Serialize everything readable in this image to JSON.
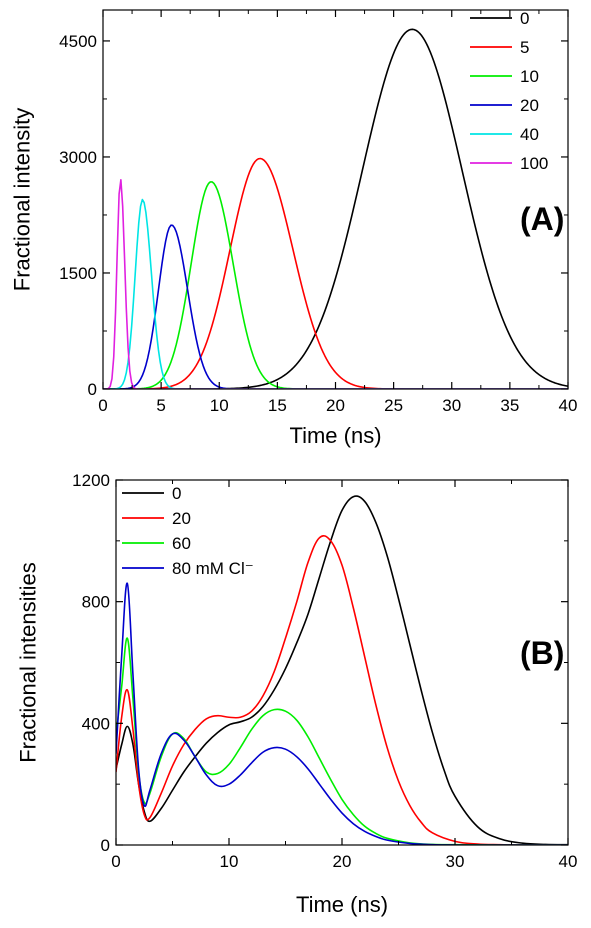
{
  "chart_data": [
    {
      "type": "line",
      "panel_label": "(A)",
      "xlabel": "Time (ns)",
      "ylabel": "Fractional intensity",
      "xlim": [
        0,
        40
      ],
      "ylim": [
        0,
        4900
      ],
      "xticks": [
        0,
        5,
        10,
        15,
        20,
        25,
        30,
        35,
        40
      ],
      "yticks": [
        0,
        1500,
        3000,
        4500
      ],
      "legend_position": "top-right",
      "grid": false,
      "series": [
        {
          "name": "0",
          "color": "#000000",
          "peak_x": 26.6,
          "peak_y": 4650,
          "width": 4.3,
          "skew": 0.0,
          "x": [
            16,
            18,
            20,
            22,
            24,
            26,
            26.6,
            28,
            30,
            32,
            34,
            36,
            38,
            40
          ],
          "y": [
            40,
            230,
            820,
            2050,
            3550,
            4600,
            4650,
            4400,
            3350,
            2000,
            900,
            300,
            75,
            10
          ]
        },
        {
          "name": "5",
          "color": "#ff0000",
          "peak_x": 13.5,
          "peak_y": 2980,
          "width": 2.7,
          "skew": 0.05,
          "x": [
            6,
            8,
            10,
            12,
            13.5,
            15,
            17,
            19,
            21,
            23,
            25
          ],
          "y": [
            60,
            400,
            1290,
            2550,
            2980,
            2650,
            1500,
            560,
            140,
            25,
            3
          ]
        },
        {
          "name": "10",
          "color": "#00ee00",
          "peak_x": 9.3,
          "peak_y": 2680,
          "width": 1.8,
          "skew": 0.05,
          "x": [
            3,
            5,
            7,
            8,
            9.3,
            10.5,
            12,
            14,
            16
          ],
          "y": [
            20,
            250,
            1250,
            2050,
            2680,
            2350,
            1280,
            280,
            25
          ]
        },
        {
          "name": "20",
          "color": "#0000cc",
          "peak_x": 5.9,
          "peak_y": 2120,
          "width": 1.25,
          "skew": 0.1,
          "x": [
            1.5,
            3,
            4.5,
            5.9,
            7,
            8.5,
            10,
            12
          ],
          "y": [
            20,
            320,
            1330,
            2120,
            1750,
            730,
            180,
            15
          ]
        },
        {
          "name": "40",
          "color": "#00e5e5",
          "peak_x": 3.4,
          "peak_y": 2450,
          "width": 0.7,
          "skew": 0.1,
          "x": [
            1,
            2,
            2.8,
            3.4,
            4,
            5,
            6
          ],
          "y": [
            30,
            450,
            1700,
            2450,
            1900,
            480,
            40
          ]
        },
        {
          "name": "100",
          "color": "#e020e0",
          "peak_x": 1.5,
          "peak_y": 2720,
          "width": 0.33,
          "skew": 0.1,
          "x": [
            0.5,
            1,
            1.3,
            1.5,
            1.8,
            2.2,
            2.8
          ],
          "y": [
            40,
            900,
            2200,
            2720,
            1900,
            450,
            20
          ]
        }
      ]
    },
    {
      "type": "line",
      "panel_label": "(B)",
      "xlabel": "Time (ns)",
      "ylabel": "Fractional intensities",
      "xlim": [
        0,
        40
      ],
      "ylim": [
        0,
        1200
      ],
      "xticks": [
        0,
        10,
        20,
        30,
        40
      ],
      "yticks": [
        0,
        400,
        800,
        1200
      ],
      "legend_position": "top-left",
      "grid": false,
      "series": [
        {
          "name": "0",
          "color": "#000000",
          "x": [
            0,
            0.5,
            1,
            1.5,
            2,
            2.5,
            3,
            4,
            5,
            6,
            7,
            8,
            9,
            10,
            11,
            12,
            13,
            14,
            15,
            16,
            17,
            18,
            19,
            20,
            21,
            22,
            23,
            24,
            25,
            26,
            27,
            28,
            29,
            30,
            32,
            34,
            36,
            38,
            40
          ],
          "y": [
            250,
            330,
            390,
            330,
            200,
            110,
            78,
            120,
            180,
            240,
            290,
            335,
            370,
            395,
            405,
            420,
            455,
            510,
            580,
            665,
            760,
            880,
            1000,
            1100,
            1145,
            1130,
            1060,
            950,
            810,
            660,
            510,
            370,
            250,
            160,
            60,
            20,
            6,
            2,
            1
          ]
        },
        {
          "name": "20",
          "color": "#ff0000",
          "x": [
            0,
            0.5,
            1,
            1.5,
            2,
            2.5,
            3,
            4,
            5,
            6,
            7,
            8,
            9,
            10,
            11,
            12,
            13,
            14,
            15,
            16,
            17,
            18,
            19,
            20,
            21,
            22,
            23,
            24,
            25,
            26,
            27,
            28,
            30,
            32,
            34,
            36,
            40
          ],
          "y": [
            240,
            420,
            510,
            380,
            200,
            100,
            90,
            170,
            260,
            330,
            380,
            415,
            425,
            420,
            420,
            440,
            490,
            570,
            680,
            800,
            930,
            1010,
            1000,
            920,
            780,
            620,
            460,
            320,
            210,
            130,
            75,
            40,
            12,
            3,
            1,
            0,
            0
          ]
        },
        {
          "name": "60",
          "color": "#00ee00",
          "x": [
            0,
            0.5,
            1,
            1.5,
            2,
            2.5,
            3,
            4,
            5,
            6,
            7,
            8,
            9,
            10,
            11,
            12,
            13,
            14,
            15,
            16,
            17,
            18,
            19,
            20,
            21,
            22,
            23,
            24,
            26,
            28,
            30,
            34,
            40
          ],
          "y": [
            360,
            520,
            680,
            480,
            240,
            140,
            170,
            290,
            365,
            350,
            290,
            240,
            235,
            265,
            320,
            380,
            425,
            445,
            440,
            410,
            355,
            285,
            215,
            150,
            100,
            62,
            38,
            22,
            7,
            2,
            1,
            0,
            0
          ]
        },
        {
          "name": "80 mM Cl⁻",
          "color": "#0000cc",
          "x": [
            0,
            0.5,
            1,
            1.5,
            2,
            2.5,
            3,
            4,
            5,
            6,
            7,
            8,
            9,
            10,
            11,
            12,
            13,
            14,
            15,
            16,
            17,
            18,
            19,
            20,
            21,
            22,
            23,
            24,
            26,
            28,
            30,
            34,
            40
          ],
          "y": [
            300,
            620,
            860,
            560,
            250,
            130,
            180,
            300,
            365,
            345,
            290,
            230,
            195,
            200,
            230,
            270,
            305,
            320,
            315,
            290,
            250,
            200,
            150,
            105,
            70,
            45,
            28,
            16,
            5,
            1,
            0,
            0,
            0
          ]
        }
      ]
    }
  ]
}
